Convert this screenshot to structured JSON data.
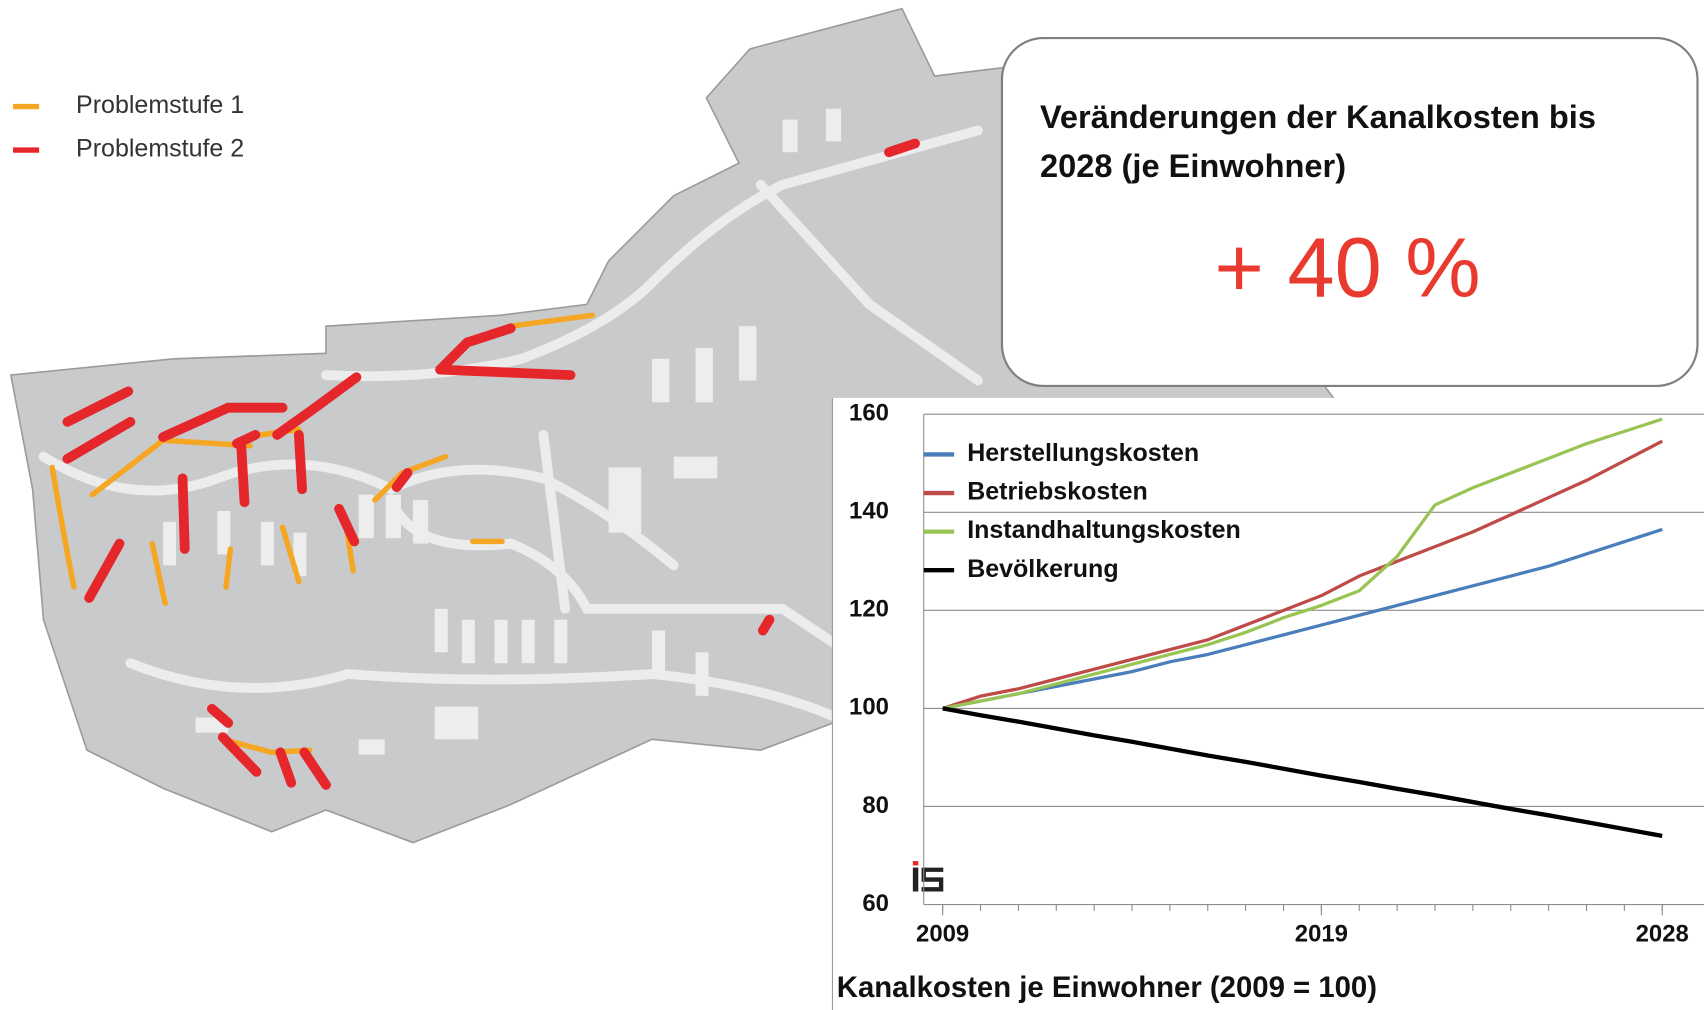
{
  "map_legend": [
    {
      "label": "Problemstufe 1",
      "color": "#f5a623"
    },
    {
      "label": "Problemstufe 2",
      "color": "#e5262b"
    }
  ],
  "callout": {
    "title_lines": [
      "Veränderungen der Kanalkosten bis",
      "2028 (je Einwohner)"
    ],
    "value": "+ 40 %",
    "value_color": "#e83a2f"
  },
  "chart_data": {
    "type": "line",
    "x_label": "Kanalkosten  je Einwohner (2009 = 100)",
    "x": [
      2009,
      2010,
      2011,
      2012,
      2013,
      2014,
      2015,
      2016,
      2017,
      2018,
      2019,
      2020,
      2021,
      2022,
      2023,
      2024,
      2025,
      2026,
      2027,
      2028
    ],
    "series": [
      {
        "name": "Herstellungskosten",
        "color": "#4a7ebb",
        "values": [
          100,
          101.5,
          103,
          104.5,
          106,
          107.5,
          109.5,
          111,
          113,
          115,
          117,
          119,
          121,
          123,
          125,
          127,
          129,
          131.5,
          134,
          136.5
        ]
      },
      {
        "name": "Betriebskosten",
        "color": "#be4b48",
        "values": [
          100,
          102.5,
          104,
          106,
          108,
          110,
          112,
          114,
          117,
          120,
          123,
          127,
          130,
          133,
          136,
          139.5,
          143,
          146.5,
          150.5,
          154.5
        ]
      },
      {
        "name": "Instandhaltungskosten",
        "color": "#98c454",
        "values": [
          100,
          101.5,
          103,
          105,
          107,
          109,
          111,
          113,
          115.5,
          118.5,
          121,
          124,
          131,
          141.5,
          145,
          148,
          151,
          154,
          156.5,
          159
        ]
      },
      {
        "name": "Bevölkerung",
        "color": "#000000",
        "values": [
          100,
          98.6,
          97.3,
          95.9,
          94.5,
          93.2,
          91.8,
          90.4,
          89.1,
          87.7,
          86.3,
          85,
          83.6,
          82.3,
          80.9,
          79.5,
          78.2,
          76.8,
          75.4,
          74
        ]
      }
    ],
    "xlim": [
      2008.5,
      2028.5
    ],
    "xticks": [
      2009,
      2019,
      2028
    ],
    "ylim": [
      60,
      160
    ],
    "yticks": [
      60,
      80,
      100,
      120,
      140,
      160
    ],
    "grid": true,
    "legend": "upper left"
  }
}
